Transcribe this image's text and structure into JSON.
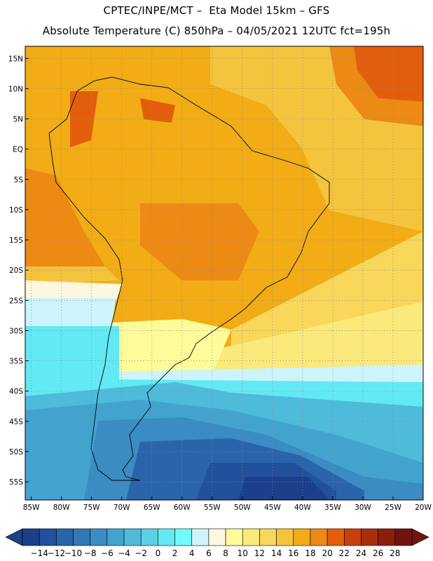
{
  "header": {
    "title_line1": "CPTEC/INPE/MCT –  Eta Model 15km – GFS",
    "title_line2": "Absolute Temperature (C) 850hPa – 04/05/2021 12UTC fct=195h"
  },
  "map": {
    "lat_labels": [
      "15N",
      "10N",
      "5N",
      "EQ",
      "5S",
      "10S",
      "15S",
      "20S",
      "25S",
      "30S",
      "35S",
      "40S",
      "45S",
      "50S",
      "55S"
    ],
    "lat_values": [
      15,
      10,
      5,
      0,
      -5,
      -10,
      -15,
      -20,
      -25,
      -30,
      -35,
      -40,
      -45,
      -50,
      -55
    ],
    "lon_labels": [
      "85W",
      "80W",
      "75W",
      "70W",
      "65W",
      "60W",
      "55W",
      "50W",
      "45W",
      "40W",
      "35W",
      "30W",
      "25W",
      "20W"
    ],
    "lon_values": [
      -85,
      -80,
      -75,
      -70,
      -65,
      -60,
      -55,
      -50,
      -45,
      -40,
      -35,
      -30,
      -25,
      -20
    ],
    "lat_range": [
      -58,
      17
    ],
    "lon_range": [
      -86,
      -20
    ]
  },
  "colorbar": {
    "tick_labels": [
      "-14",
      "-12",
      "-10",
      "-8",
      "-6",
      "-4",
      "-2",
      "0",
      "2",
      "4",
      "6",
      "8",
      "10",
      "12",
      "14",
      "16",
      "18",
      "20",
      "22",
      "24",
      "26",
      "28"
    ],
    "colors": [
      "#1b3f8a",
      "#21509c",
      "#2a64ab",
      "#3378b6",
      "#3a8cc2",
      "#43a3cf",
      "#4ebbdb",
      "#5ad1e7",
      "#62e9f4",
      "#6ffcfc",
      "#cdf4fb",
      "#fff6e0",
      "#fefc9a",
      "#fbe97c",
      "#f8d75b",
      "#f4c43c",
      "#f1ac16",
      "#ec8a14",
      "#e35e0c",
      "#c8400a",
      "#a82d0a",
      "#8b1e0c",
      "#701410"
    ]
  }
}
